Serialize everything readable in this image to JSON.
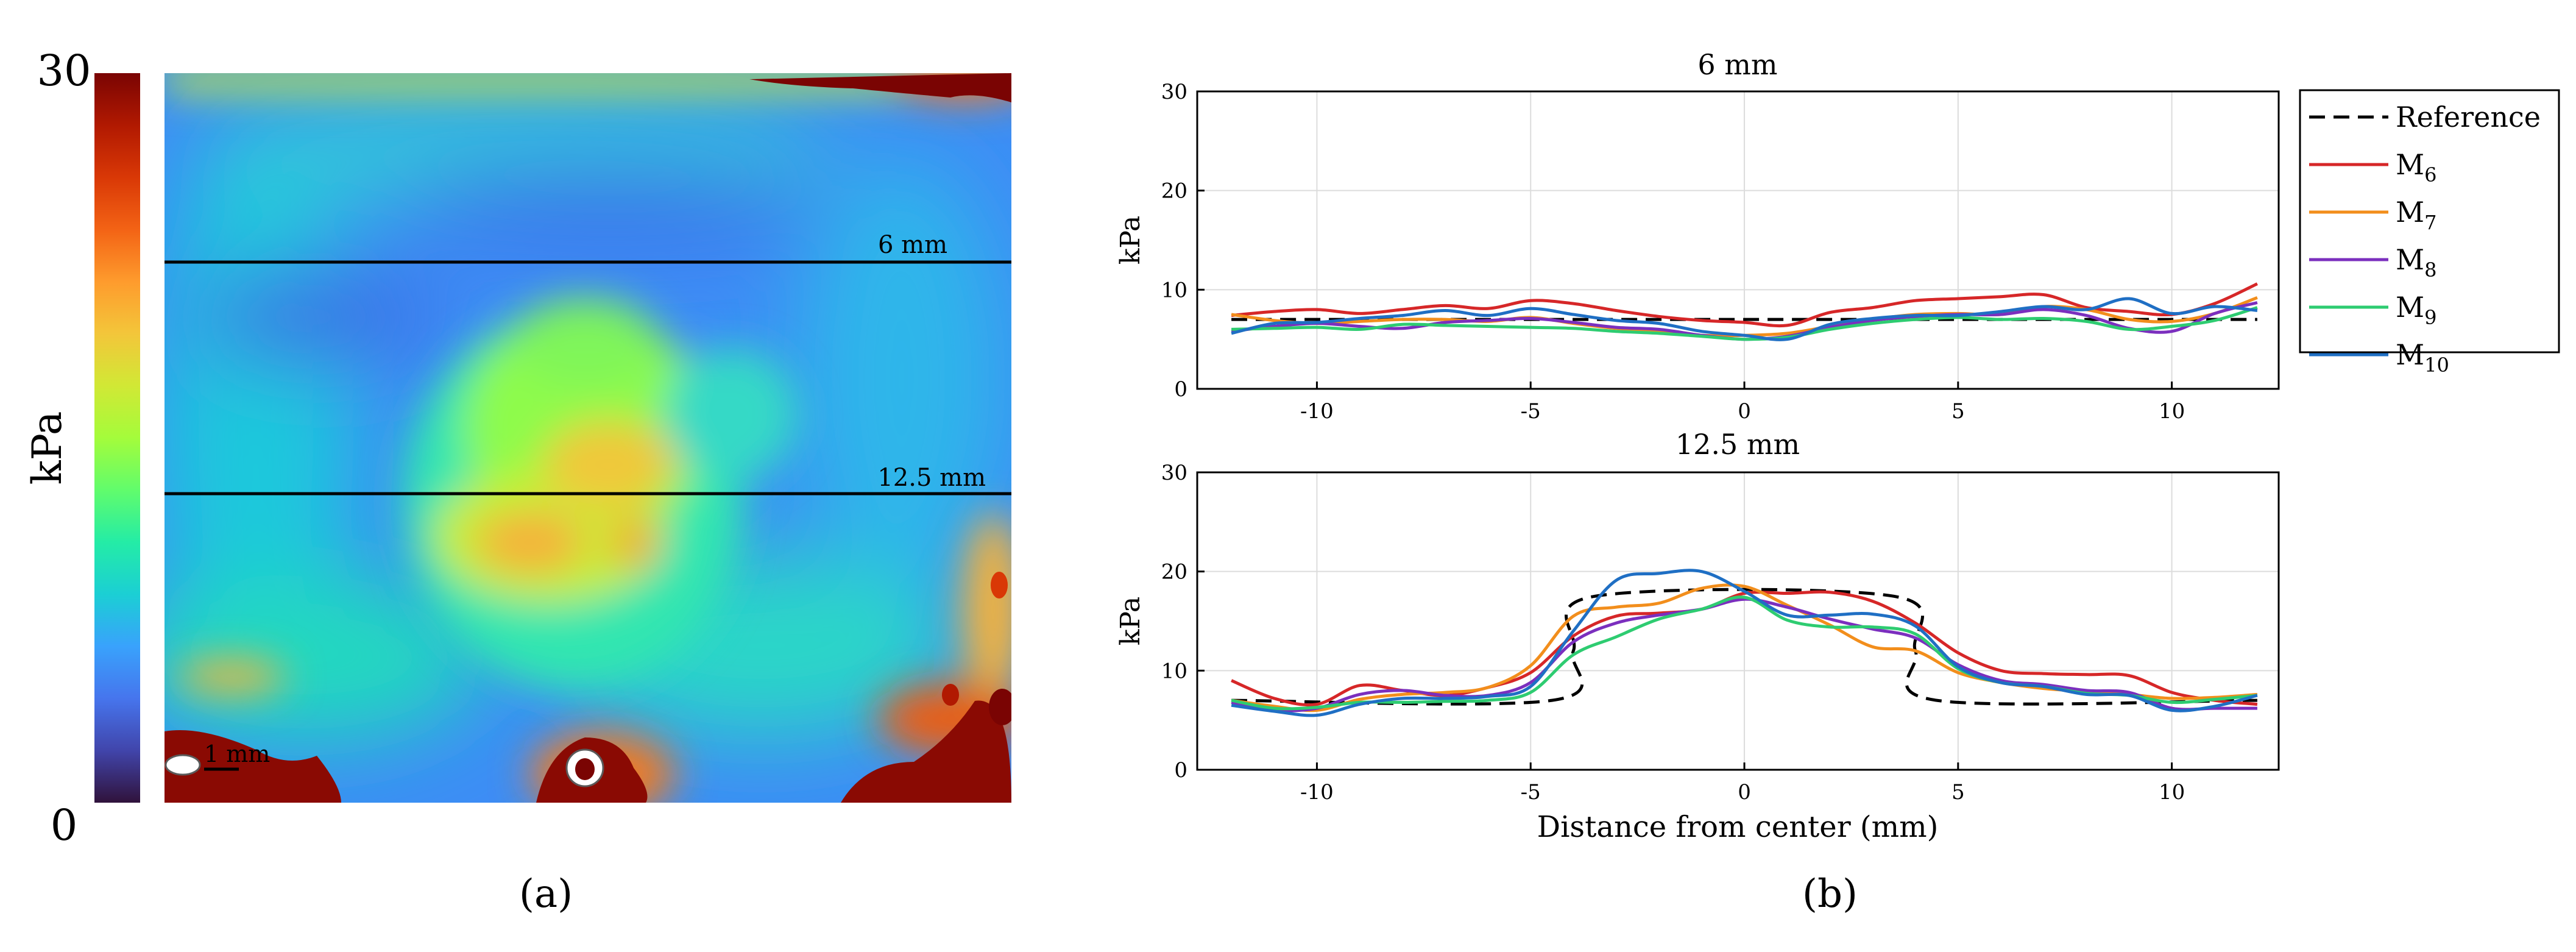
{
  "panel_labels": {
    "a": "(a)",
    "b": "(b)"
  },
  "colormap_colors": [
    "#30123b",
    "#4145ab",
    "#4675ed",
    "#39a2fc",
    "#1bcfd4",
    "#24eca6",
    "#61fc6c",
    "#a4fc3b",
    "#d1e835",
    "#f3c63a",
    "#fe9b2d",
    "#f36315",
    "#d93806",
    "#b11901",
    "#7a0403"
  ],
  "chart_data": [
    {
      "type": "heatmap",
      "title": "",
      "colorbar": {
        "label": "kPa",
        "min": 0,
        "max": 30,
        "min_label": "0",
        "max_label": "30"
      },
      "reference_lines": [
        {
          "label": "6 mm",
          "depth_mm": 6
        },
        {
          "label": "12.5 mm",
          "depth_mm": 12.5
        }
      ],
      "scale_bar_label": "1 mm",
      "background_level_kpa": 9,
      "inclusion_level_kpa": 16
    },
    {
      "type": "line",
      "title": "6 mm",
      "xlabel": "",
      "ylabel": "kPa",
      "xlim": [
        -12.8,
        12.5
      ],
      "ylim": [
        0,
        30
      ],
      "xticks": [
        -10,
        -5,
        0,
        5,
        10
      ],
      "xtick_labels": [
        "-10",
        "-5",
        "0",
        "5",
        "10"
      ],
      "yticks": [
        0,
        10,
        20,
        30
      ],
      "ytick_labels": [
        "0",
        "10",
        "20",
        "30"
      ],
      "grid": true,
      "x": [
        -12,
        -11,
        -10,
        -9,
        -8,
        -7,
        -6,
        -5,
        -4,
        -3,
        -2,
        -1,
        0,
        1,
        2,
        3,
        4,
        5,
        6,
        7,
        8,
        9,
        10,
        11,
        12
      ],
      "series": [
        {
          "name": "Reference",
          "color": "#000000",
          "dashed": true,
          "values": [
            7,
            7,
            7,
            7,
            7,
            7,
            7,
            7,
            7,
            7,
            7,
            7,
            7,
            7,
            7,
            7,
            7,
            7,
            7,
            7,
            7,
            7,
            7,
            7,
            7
          ]
        },
        {
          "name": "M6",
          "color": "#d62728",
          "values": [
            7.4,
            7.8,
            8.0,
            7.6,
            8.0,
            8.4,
            8.1,
            8.9,
            8.6,
            7.9,
            7.3,
            6.9,
            6.7,
            6.4,
            7.7,
            8.2,
            8.9,
            9.1,
            9.3,
            9.5,
            8.2,
            7.8,
            7.5,
            8.6,
            10.6
          ]
        },
        {
          "name": "M7",
          "color": "#f28e1c",
          "values": [
            7.5,
            6.9,
            6.6,
            6.8,
            7.0,
            7.0,
            6.8,
            7.2,
            6.6,
            6.1,
            5.8,
            5.4,
            5.4,
            5.6,
            6.3,
            7.0,
            7.5,
            7.6,
            7.5,
            8.3,
            8.0,
            7.0,
            6.8,
            7.6,
            9.2
          ]
        },
        {
          "name": "M8",
          "color": "#7b2fbe",
          "values": [
            5.8,
            6.3,
            6.6,
            6.3,
            6.1,
            6.7,
            6.9,
            7.1,
            6.7,
            6.2,
            6.0,
            5.4,
            5.0,
            5.3,
            6.2,
            6.9,
            7.3,
            7.5,
            7.5,
            8.0,
            7.4,
            6.1,
            5.8,
            7.6,
            8.7
          ]
        },
        {
          "name": "M9",
          "color": "#2ecc71",
          "values": [
            6.0,
            6.1,
            6.2,
            6.0,
            6.5,
            6.4,
            6.3,
            6.2,
            6.1,
            5.8,
            5.6,
            5.3,
            5.0,
            5.2,
            6.0,
            6.6,
            7.0,
            7.2,
            7.0,
            7.1,
            6.8,
            6.0,
            6.3,
            6.9,
            8.2
          ]
        },
        {
          "name": "M10",
          "color": "#1f6fc4",
          "values": [
            5.6,
            6.6,
            6.7,
            7.1,
            7.4,
            7.9,
            7.4,
            8.1,
            7.5,
            6.9,
            6.6,
            5.8,
            5.4,
            5.0,
            6.5,
            7.1,
            7.4,
            7.4,
            7.8,
            8.3,
            8.0,
            9.1,
            7.6,
            8.3,
            7.9
          ]
        }
      ],
      "legend": {
        "position": "top-right",
        "entries": [
          "Reference",
          "M6",
          "M7",
          "M8",
          "M9",
          "M10"
        ]
      }
    },
    {
      "type": "line",
      "title": "12.5 mm",
      "xlabel": "Distance from center (mm)",
      "ylabel": "kPa",
      "xlim": [
        -12.8,
        12.5
      ],
      "ylim": [
        0,
        30
      ],
      "xticks": [
        -10,
        -5,
        0,
        5,
        10
      ],
      "xtick_labels": [
        "-10",
        "-5",
        "0",
        "5",
        "10"
      ],
      "yticks": [
        0,
        10,
        20,
        30
      ],
      "ytick_labels": [
        "0",
        "10",
        "20",
        "30"
      ],
      "grid": true,
      "reference": {
        "x": [
          -12,
          -4.5,
          -4,
          -3.5,
          3.5,
          4,
          4.5,
          12
        ],
        "y": [
          7,
          7,
          12,
          17.5,
          17.5,
          12,
          7,
          7
        ]
      },
      "x": [
        -12,
        -11,
        -10,
        -9,
        -8,
        -7,
        -6,
        -5,
        -4,
        -3,
        -2,
        -1,
        0,
        1,
        2,
        3,
        4,
        5,
        6,
        7,
        8,
        9,
        10,
        11,
        12
      ],
      "series": [
        {
          "name": "M6",
          "color": "#d62728",
          "values": [
            9.0,
            7.2,
            6.6,
            8.5,
            8.0,
            7.5,
            8.3,
            9.8,
            13.5,
            15.5,
            15.8,
            16.2,
            17.8,
            17.8,
            17.9,
            17.0,
            14.8,
            11.8,
            10.0,
            9.7,
            9.6,
            9.5,
            7.8,
            7.0,
            6.6
          ]
        },
        {
          "name": "M7",
          "color": "#f28e1c",
          "values": [
            7.0,
            6.4,
            6.0,
            7.1,
            7.6,
            7.8,
            8.3,
            10.5,
            15.5,
            16.4,
            16.8,
            18.3,
            18.5,
            16.6,
            14.6,
            12.4,
            12.0,
            9.8,
            8.8,
            8.2,
            7.9,
            7.6,
            7.2,
            7.3,
            7.6
          ]
        },
        {
          "name": "M8",
          "color": "#7b2fbe",
          "values": [
            6.8,
            6.0,
            6.2,
            7.6,
            8.0,
            7.5,
            7.5,
            8.8,
            12.9,
            14.8,
            15.6,
            16.2,
            17.2,
            16.4,
            15.2,
            14.2,
            13.3,
            10.6,
            9.0,
            8.6,
            8.0,
            7.8,
            6.2,
            6.2,
            6.2
          ]
        },
        {
          "name": "M9",
          "color": "#2ecc71",
          "values": [
            7.0,
            6.2,
            6.3,
            6.8,
            6.8,
            6.9,
            7.0,
            7.8,
            11.6,
            13.4,
            15.2,
            16.2,
            17.4,
            15.1,
            14.4,
            14.4,
            13.7,
            10.2,
            8.8,
            8.4,
            7.7,
            7.5,
            6.8,
            7.1,
            7.5
          ]
        },
        {
          "name": "M10",
          "color": "#1f6fc4",
          "values": [
            6.5,
            5.9,
            5.5,
            6.6,
            7.2,
            7.2,
            7.4,
            8.4,
            14.0,
            19.1,
            19.8,
            20.0,
            18.0,
            15.6,
            15.6,
            15.7,
            14.5,
            10.4,
            8.8,
            8.4,
            7.6,
            7.5,
            6.0,
            6.4,
            7.5
          ]
        }
      ]
    }
  ]
}
